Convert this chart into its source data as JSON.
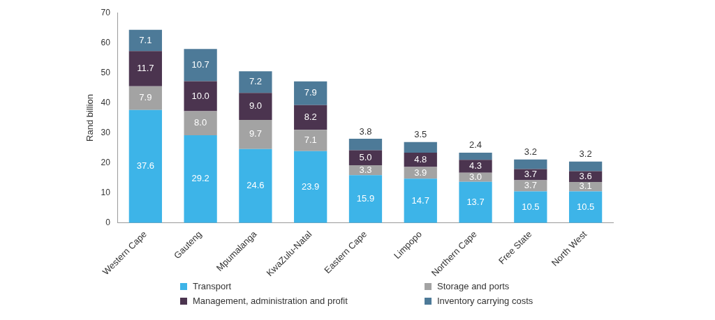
{
  "chart_data": {
    "type": "bar",
    "stacked": true,
    "ylabel": "Rand billion",
    "categories": [
      "Western Cape",
      "Gauteng",
      "Mpumalanga",
      "KwaZulu-Natal",
      "Eastern Cape",
      "Limpopo",
      "Northern Cape",
      "Free State",
      "North West"
    ],
    "series": [
      {
        "name": "Transport",
        "color": "#3db4e8",
        "values": [
          37.6,
          29.2,
          24.6,
          23.9,
          15.9,
          14.7,
          13.7,
          10.5,
          10.5
        ],
        "value_labels": [
          "37.6",
          "29.2",
          "24.6",
          "23.9",
          "15.9",
          "14.7",
          "13.7",
          "10.5",
          "10.5"
        ]
      },
      {
        "name": "Storage and ports",
        "color": "#a3a3a3",
        "values": [
          7.9,
          8.0,
          9.7,
          7.1,
          3.3,
          3.9,
          3.0,
          3.7,
          3.1
        ],
        "value_labels": [
          "7.9",
          "8.0",
          "9.7",
          "7.1",
          "3.3",
          "3.9",
          "3.0",
          "3.7",
          "3.1"
        ]
      },
      {
        "name": "Management, administration and profit",
        "color": "#4b344f",
        "values": [
          11.7,
          10.0,
          9.0,
          8.2,
          5.0,
          4.8,
          4.3,
          3.7,
          3.6
        ],
        "value_labels": [
          "11.7",
          "10.0",
          "9.0",
          "8.2",
          "5.0",
          "4.8",
          "4.3",
          "3.7",
          "3.6"
        ]
      },
      {
        "name": "Inventory carrying costs",
        "color": "#4d7a98",
        "values": [
          7.1,
          10.7,
          7.2,
          7.9,
          3.8,
          3.5,
          2.4,
          3.2,
          3.2
        ],
        "value_labels": [
          "7.1",
          "10.7",
          "7.2",
          "7.9",
          "3.8",
          "3.5",
          "2.4",
          "3.2",
          "3.2"
        ]
      }
    ],
    "ylim": [
      0,
      70
    ],
    "yticks": [
      0,
      10,
      20,
      30,
      40,
      50,
      60,
      70
    ],
    "grid": false,
    "legend": "bottom"
  }
}
